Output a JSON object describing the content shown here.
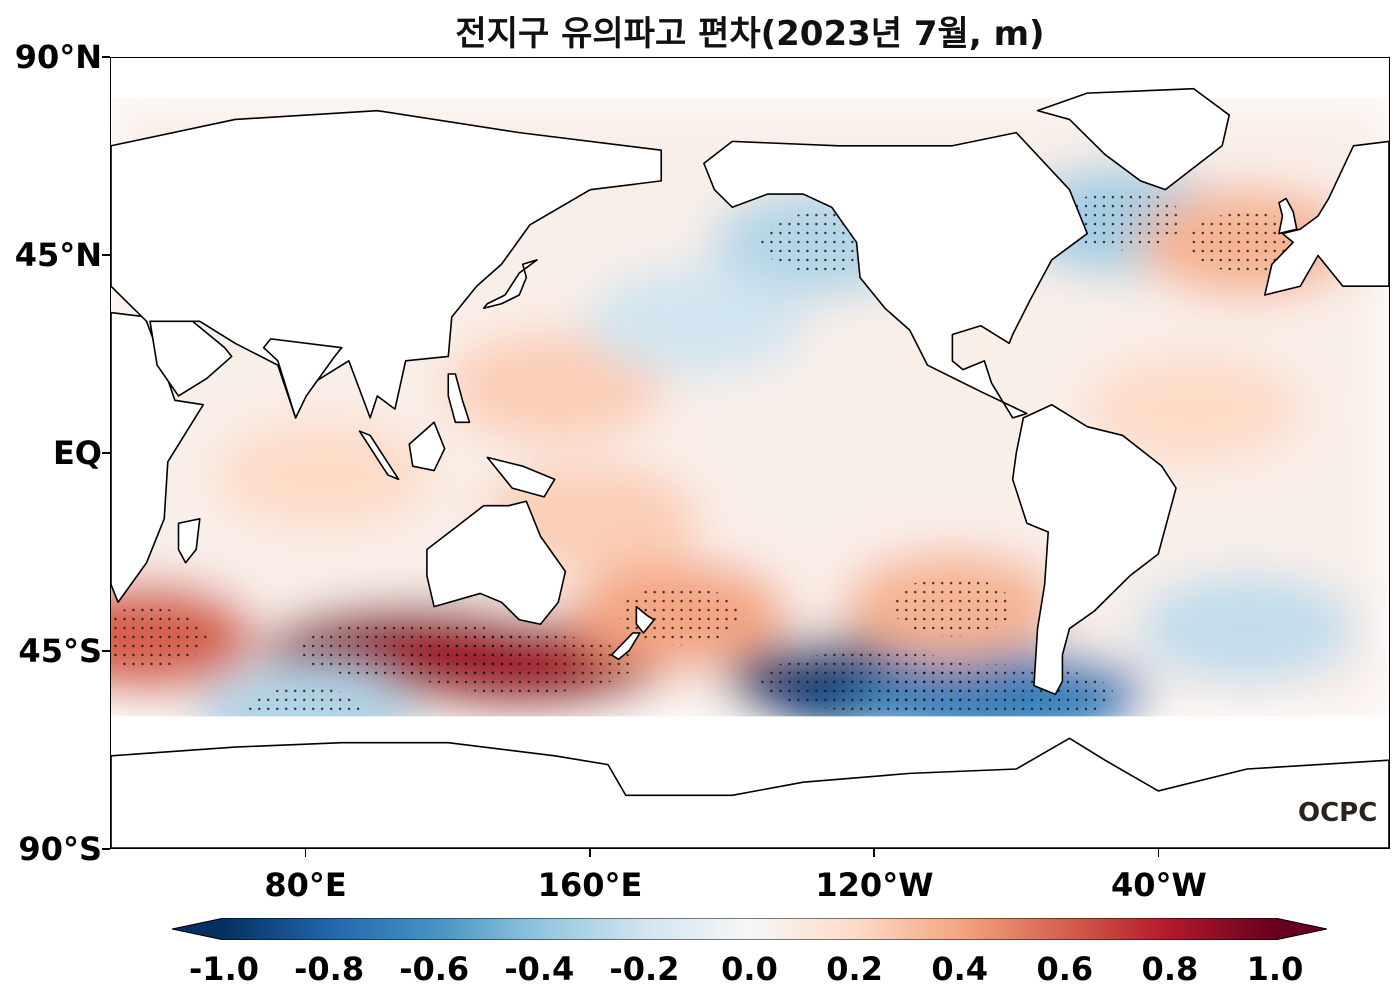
{
  "title": "전지구 유의파고 편차(2023년 7월, m)",
  "watermark": "OCPC",
  "axes": {
    "lat_ticks": [
      {
        "value": 90,
        "label": "90°N"
      },
      {
        "value": 45,
        "label": "45°N"
      },
      {
        "value": 0,
        "label": "EQ"
      },
      {
        "value": -45,
        "label": "45°S"
      },
      {
        "value": -90,
        "label": "90°S"
      }
    ],
    "lon_ticks": [
      {
        "value": 80,
        "label": "80°E"
      },
      {
        "value": 160,
        "label": "160°E"
      },
      {
        "value": 240,
        "label": "120°W"
      },
      {
        "value": 320,
        "label": "40°W"
      }
    ],
    "lon_range": [
      25,
      385
    ],
    "lat_range": [
      -90,
      90
    ]
  },
  "colorbar": {
    "min": -1.0,
    "max": 1.0,
    "ticks": [
      "-1.0",
      "-0.8",
      "-0.6",
      "-0.4",
      "-0.2",
      "0.0",
      "0.2",
      "0.4",
      "0.6",
      "0.8",
      "1.0"
    ],
    "colors": [
      "#053061",
      "#2166ac",
      "#4393c3",
      "#92c5de",
      "#d1e5f0",
      "#f7f7f7",
      "#fddbc7",
      "#f4a582",
      "#d6604d",
      "#b2182b",
      "#67001f"
    ]
  },
  "chart_data": {
    "type": "heatmap",
    "title": "전지구 유의파고 편차(2023년 7월, m)",
    "variable": "significant wave height anomaly",
    "units": "m",
    "anomaly_regions": [
      {
        "region": "Southern Indian Ocean south of Australia",
        "lon": 110,
        "lat": -45,
        "value": 0.9
      },
      {
        "region": "South of Australia / Tasman",
        "lon": 140,
        "lat": -48,
        "value": 0.85
      },
      {
        "region": "East of New Zealand",
        "lon": 185,
        "lat": -37,
        "value": 0.4
      },
      {
        "region": "South Pacific (Southern Ocean)",
        "lon": 240,
        "lat": -52,
        "value": -0.95
      },
      {
        "region": "South Pacific west of Drake Passage",
        "lon": 275,
        "lat": -55,
        "value": -0.7
      },
      {
        "region": "Southeast Pacific off Chile",
        "lon": 262,
        "lat": -35,
        "value": 0.35
      },
      {
        "region": "Western Indian Ocean south",
        "lon": 35,
        "lat": -42,
        "value": 0.6
      },
      {
        "region": "North Atlantic (Labrador Sea)",
        "lon": 310,
        "lat": 53,
        "value": -0.35
      },
      {
        "region": "Northeast Atlantic",
        "lon": 345,
        "lat": 48,
        "value": 0.35
      },
      {
        "region": "Northeast Pacific (Gulf of Alaska)",
        "lon": 225,
        "lat": 48,
        "value": -0.3
      },
      {
        "region": "Western Tropical Pacific",
        "lon": 150,
        "lat": 15,
        "value": 0.25
      },
      {
        "region": "Tropical Indian Ocean",
        "lon": 85,
        "lat": -5,
        "value": 0.2
      },
      {
        "region": "Southwest Pacific (Coral Sea)",
        "lon": 160,
        "lat": -15,
        "value": 0.25
      },
      {
        "region": "Tropical Atlantic",
        "lon": 330,
        "lat": 10,
        "value": 0.2
      },
      {
        "region": "South Atlantic",
        "lon": 345,
        "lat": -40,
        "value": -0.25
      },
      {
        "region": "Subtropical North Pacific",
        "lon": 190,
        "lat": 30,
        "value": -0.2
      },
      {
        "region": "Southern Indian Ocean 60°S",
        "lon": 80,
        "lat": -60,
        "value": -0.3
      }
    ],
    "stippling": "statistically significant regions",
    "xlim": [
      25,
      385
    ],
    "ylim": [
      -90,
      90
    ]
  }
}
